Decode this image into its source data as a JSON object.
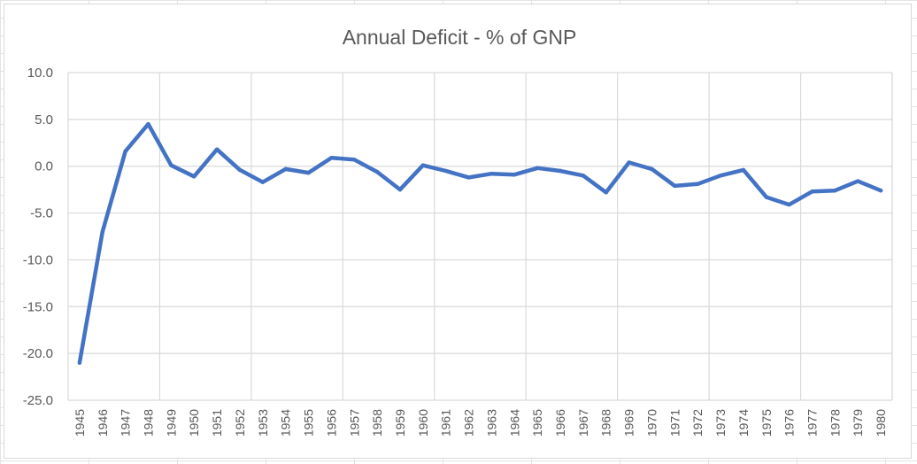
{
  "chart_data": {
    "type": "line",
    "title": "Annual Deficit - % of GNP",
    "xlabel": "",
    "ylabel": "",
    "ylim": [
      -25,
      10
    ],
    "yticks": [
      "10.0",
      "5.0",
      "0.0",
      "-5.0",
      "-10.0",
      "-15.0",
      "-20.0",
      "-25.0"
    ],
    "ytick_values": [
      10,
      5,
      0,
      -5,
      -10,
      -15,
      -20,
      -25
    ],
    "categories": [
      "1945",
      "1946",
      "1947",
      "1948",
      "1949",
      "1950",
      "1951",
      "1952",
      "1953",
      "1954",
      "1955",
      "1956",
      "1957",
      "1958",
      "1959",
      "1960",
      "1961",
      "1962",
      "1963",
      "1964",
      "1965",
      "1966",
      "1967",
      "1968",
      "1969",
      "1970",
      "1971",
      "1972",
      "1973",
      "1974",
      "1975",
      "1976",
      "1977",
      "1978",
      "1979",
      "1980"
    ],
    "series": [
      {
        "values": [
          -21.0,
          -7.0,
          1.6,
          4.5,
          0.1,
          -1.1,
          1.8,
          -0.4,
          -1.7,
          -0.3,
          -0.7,
          0.9,
          0.7,
          -0.6,
          -2.5,
          0.1,
          -0.5,
          -1.2,
          -0.8,
          -0.9,
          -0.2,
          -0.5,
          -1.0,
          -2.8,
          0.4,
          -0.3,
          -2.1,
          -1.9,
          -1.0,
          -0.4,
          -3.3,
          -4.1,
          -2.7,
          -2.6,
          -1.6,
          -2.6
        ],
        "color": "#4472c4"
      }
    ],
    "grid": true,
    "legend": "none"
  }
}
